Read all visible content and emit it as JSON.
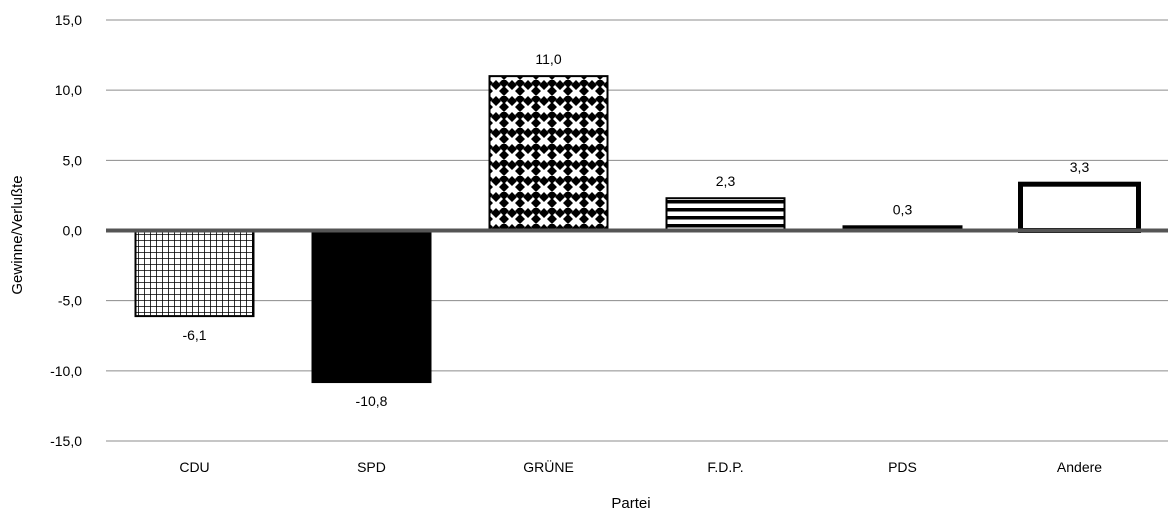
{
  "chart_data": {
    "type": "bar",
    "title": "",
    "xlabel": "Partei",
    "ylabel": "Gewinne/Verlußte",
    "ylim": [
      -15,
      15
    ],
    "ytick_values": [
      15,
      10,
      5,
      0,
      -5,
      -10,
      -15
    ],
    "ytick_labels": [
      "15,0",
      "10,0",
      "5,0",
      "0,0",
      "-5,0",
      "-10,0",
      "-15,0"
    ],
    "grid": true,
    "categories": [
      "CDU",
      "SPD",
      "GRÜNE",
      "F.D.P.",
      "PDS",
      "Andere"
    ],
    "values": [
      -6.1,
      -10.8,
      11.0,
      2.3,
      0.3,
      3.3
    ],
    "value_labels": [
      "-6,1",
      "-10,8",
      "11,0",
      "2,3",
      "0,3",
      "3,3"
    ],
    "fills": [
      "grid-pattern",
      "solid-black",
      "diamond-checker",
      "horizontal-stripes",
      "solid-black",
      "white-outline"
    ]
  }
}
